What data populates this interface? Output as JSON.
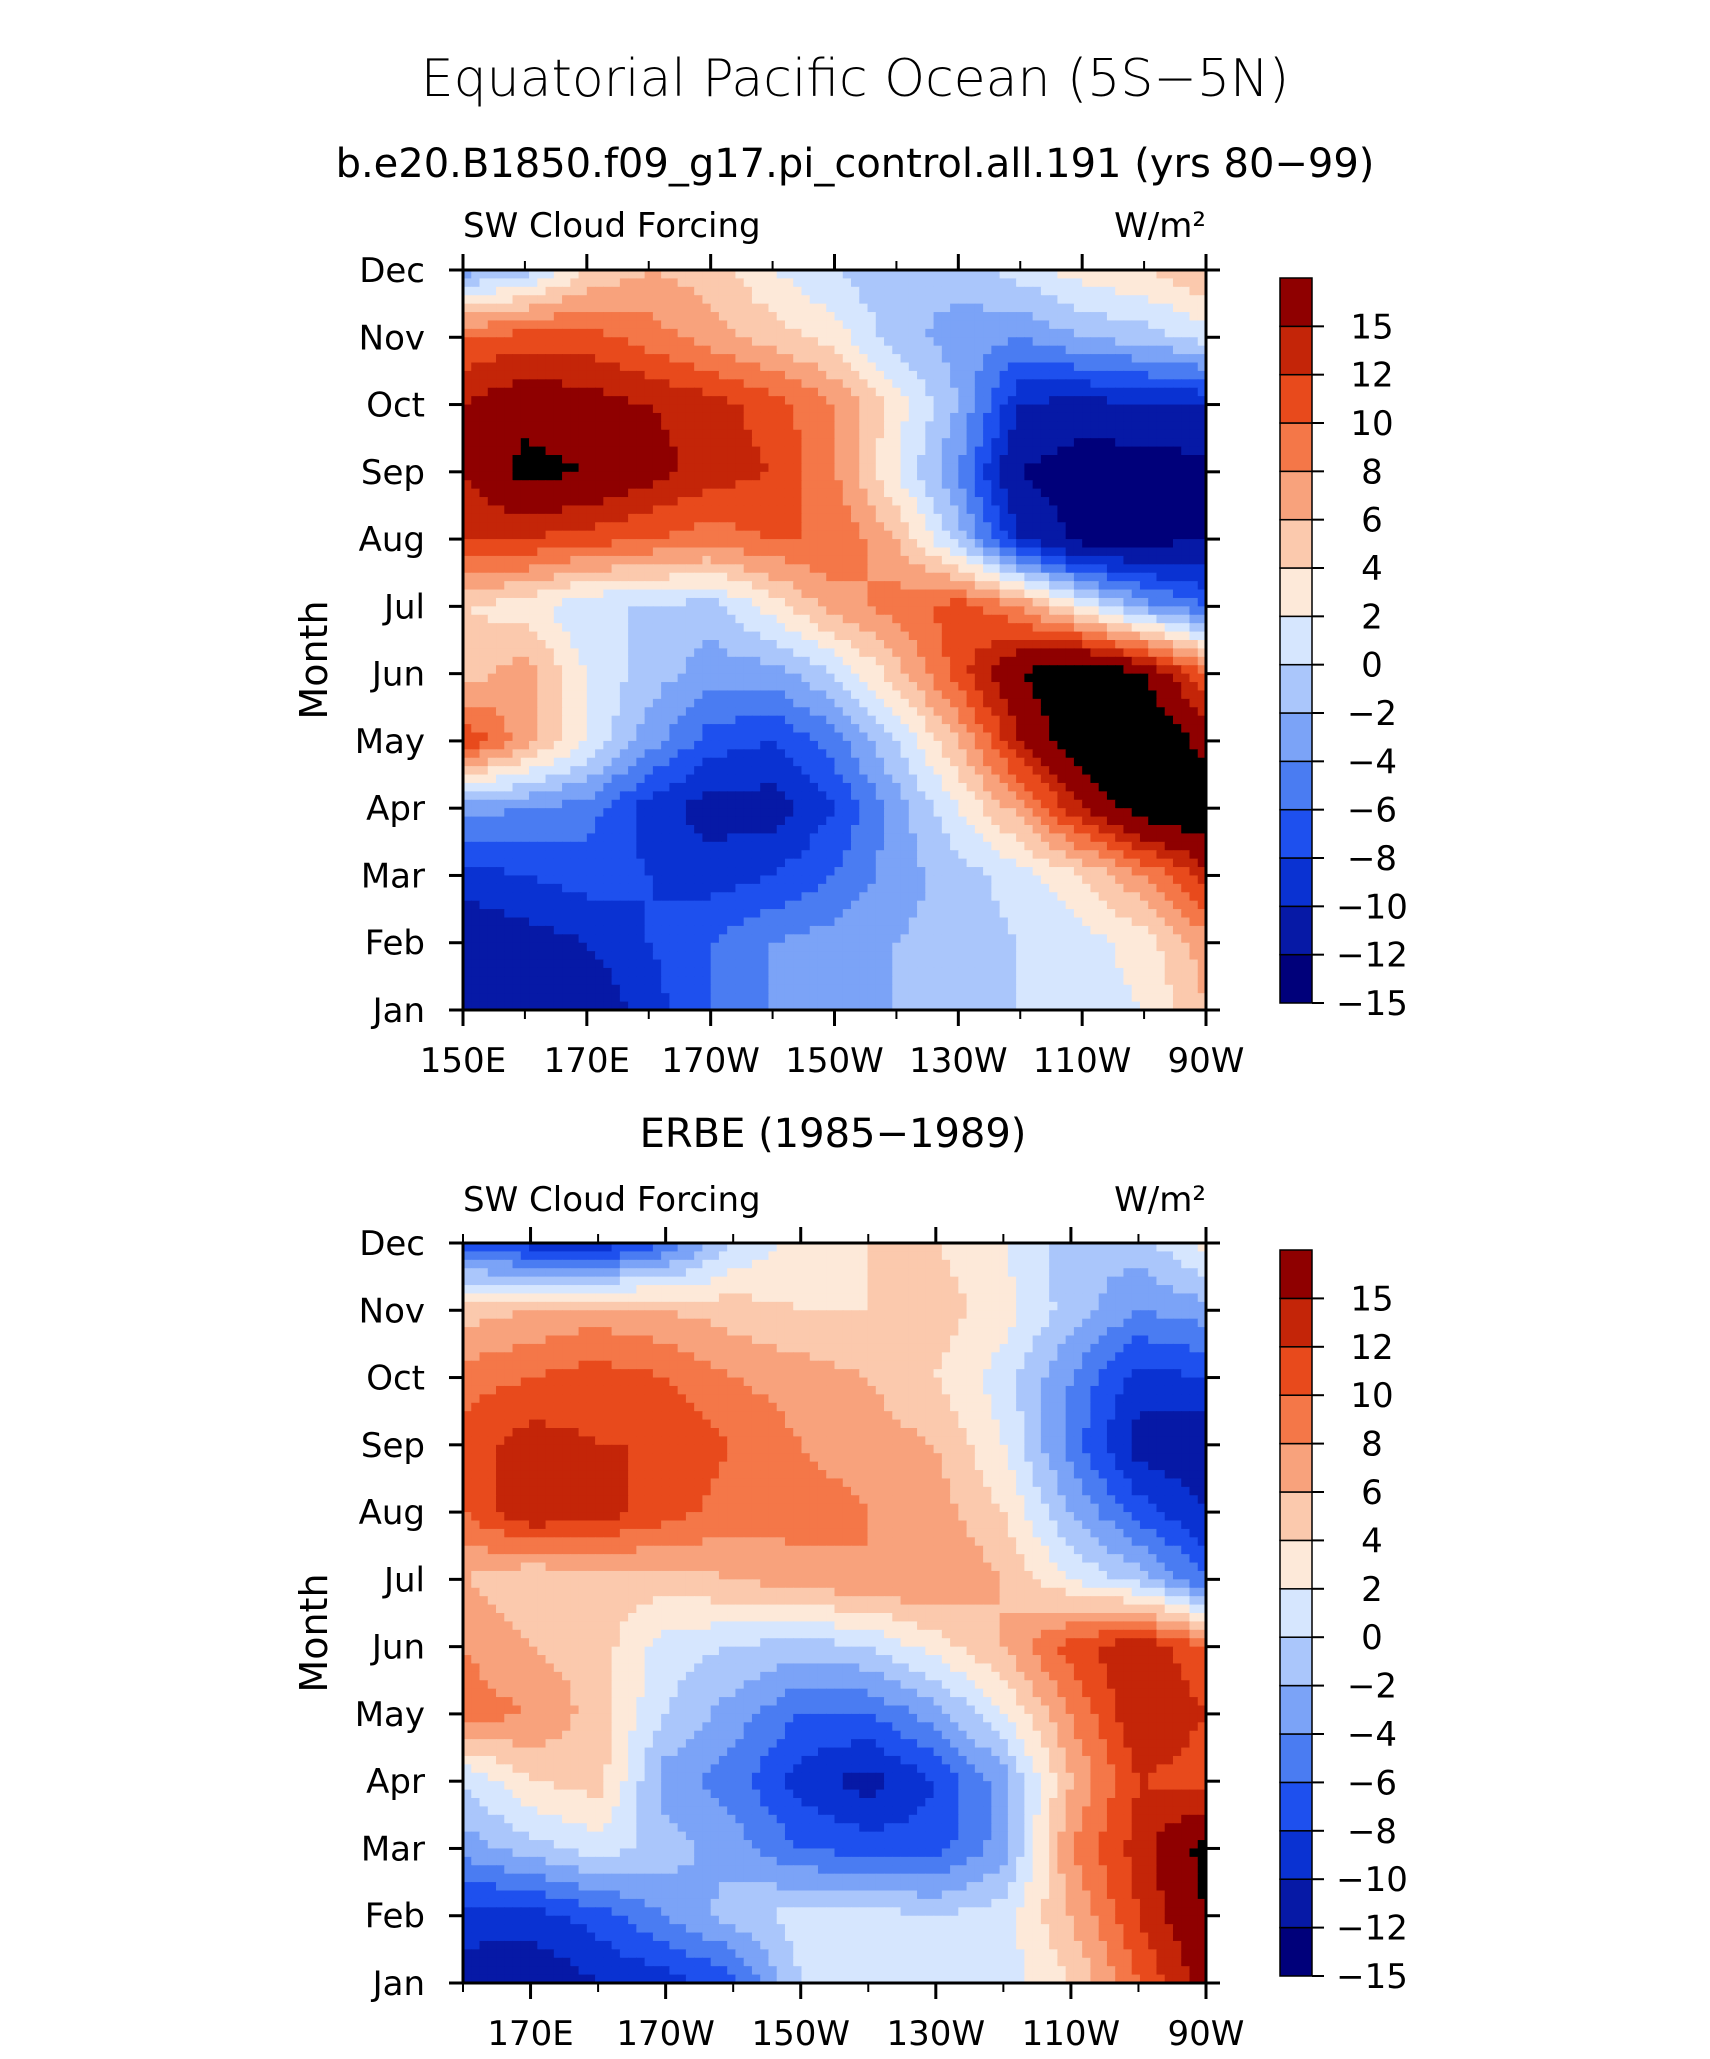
{
  "figure": {
    "title": "Equatorial Pacific Ocean (5S−5N)",
    "subtitle": "b.e20.B1850.f09_g17.pi_control.all.191 (yrs 80−99)"
  },
  "colorbar": {
    "levels": [
      -15,
      -12,
      -10,
      -8,
      -6,
      -4,
      -2,
      0,
      2,
      4,
      6,
      8,
      10,
      12,
      15
    ],
    "level_labels": [
      "15",
      "12",
      "10",
      "8",
      "6",
      "4",
      "2",
      "0",
      "−2",
      "−4",
      "−6",
      "−8",
      "−10",
      "−12",
      "−15"
    ],
    "colors": [
      "#00007a",
      "#0619a6",
      "#0a32d2",
      "#1e50ee",
      "#4a7cf2",
      "#7ba3f7",
      "#aac6fb",
      "#d6e6fe",
      "#fde9d9",
      "#fbc9ad",
      "#f8a27c",
      "#f47748",
      "#e84a1c",
      "#c42508",
      "#8f0000"
    ]
  },
  "chart_data": [
    {
      "type": "heatmap",
      "title": "b.e20.B1850.f09_g17.pi_control.all.191 (yrs 80−99)",
      "left_label": "SW Cloud Forcing",
      "units": "W/m²",
      "ylabel": "Month",
      "xlabel": "",
      "x_ticks": [
        "150E",
        "170E",
        "170W",
        "150W",
        "130W",
        "110W",
        "90W"
      ],
      "x_tick_lons": [
        150,
        170,
        190,
        210,
        230,
        250,
        270
      ],
      "y_ticks": [
        "Jan",
        "Feb",
        "Mar",
        "Apr",
        "May",
        "Jun",
        "Jul",
        "Aug",
        "Sep",
        "Oct",
        "Nov",
        "Dec"
      ],
      "xlim": [
        150,
        270
      ],
      "x": [
        150,
        160,
        170,
        180,
        190,
        200,
        210,
        220,
        230,
        240,
        250,
        260,
        270
      ],
      "z": [
        [
          -15,
          -15,
          -14,
          -11,
          -8,
          -6,
          -5,
          -4,
          -3,
          -2,
          -1,
          0,
          4
        ],
        [
          -14,
          -13,
          -12,
          -10,
          -8,
          -6,
          -5,
          -4,
          -3,
          -2,
          -1,
          1,
          5
        ],
        [
          -11,
          -10,
          -9,
          -10,
          -11,
          -10,
          -8,
          -5,
          -3,
          -1,
          2,
          6,
          11
        ],
        [
          -5,
          -6,
          -7,
          -11,
          -13,
          -13,
          -10,
          -5,
          0,
          5,
          12,
          17,
          18
        ],
        [
          10,
          5,
          0,
          -5,
          -9,
          -10,
          -7,
          -2,
          4,
          12,
          18,
          18,
          14
        ],
        [
          3,
          5,
          0,
          -3,
          -5,
          -5,
          -2,
          3,
          9,
          15,
          18,
          15,
          8
        ],
        [
          2,
          1,
          -2,
          -2,
          -3,
          1,
          5,
          7,
          9,
          6,
          0,
          -5,
          -8
        ],
        [
          10,
          10,
          9,
          8,
          7,
          8,
          8,
          4,
          -3,
          -12,
          -16,
          -16,
          -15
        ],
        [
          12,
          16,
          15,
          13,
          11,
          10,
          6,
          0,
          -6,
          -15,
          -17,
          -17,
          -16
        ],
        [
          12,
          14,
          13,
          12,
          11,
          9,
          6,
          1,
          -4,
          -12,
          -13,
          -12,
          -12
        ],
        [
          8,
          9,
          9,
          7,
          5,
          3,
          1,
          -3,
          -5,
          -6,
          -4,
          -3,
          -1
        ],
        [
          -5,
          -3,
          2,
          4,
          3,
          0,
          -2,
          -4,
          -3,
          -1,
          1,
          2,
          4
        ]
      ]
    },
    {
      "type": "heatmap",
      "title": "ERBE (1985−1989)",
      "left_label": "SW Cloud Forcing",
      "units": "W/m²",
      "ylabel": "Month",
      "xlabel": "",
      "x_ticks": [
        "170E",
        "170W",
        "150W",
        "130W",
        "110W",
        "90W"
      ],
      "x_tick_lons": [
        170,
        190,
        210,
        230,
        250,
        270
      ],
      "y_ticks": [
        "Jan",
        "Feb",
        "Mar",
        "Apr",
        "May",
        "Jun",
        "Jul",
        "Aug",
        "Sep",
        "Oct",
        "Nov",
        "Dec"
      ],
      "xlim": [
        160,
        270
      ],
      "x": [
        160,
        170,
        180,
        190,
        200,
        210,
        220,
        230,
        240,
        250,
        260,
        270
      ],
      "z": [
        [
          -13,
          -14,
          -12,
          -11,
          -9,
          -2,
          0,
          -1,
          -1,
          2,
          8,
          13
        ],
        [
          -11,
          -11,
          -9,
          -6,
          -3,
          -1,
          -1,
          -2,
          -1,
          4,
          10,
          15
        ],
        [
          -5,
          -3,
          -1,
          -3,
          -5,
          -8,
          -9,
          -9,
          -5,
          6,
          11,
          16
        ],
        [
          -2,
          2,
          3,
          -5,
          -7,
          -11,
          -13,
          -10,
          -5,
          4,
          10,
          9
        ],
        [
          7,
          6,
          3,
          -2,
          -5,
          -8,
          -8,
          -5,
          0,
          6,
          12,
          10
        ],
        [
          6,
          4,
          3,
          -1,
          -2,
          -3,
          -2,
          1,
          4,
          9,
          12,
          8
        ],
        [
          4,
          2,
          3,
          3,
          4,
          5,
          6,
          6,
          4,
          0,
          -3,
          -8
        ],
        [
          8,
          12,
          11,
          9,
          7,
          7,
          6,
          5,
          2,
          -4,
          -9,
          -12
        ],
        [
          9,
          11,
          10,
          10,
          8,
          6,
          5,
          4,
          0,
          -7,
          -13,
          -14
        ],
        [
          7,
          8,
          9,
          8,
          6,
          5,
          4,
          2,
          -1,
          -6,
          -11,
          -10
        ],
        [
          3,
          4,
          5,
          4,
          3,
          2,
          2,
          3,
          1,
          -3,
          -6,
          -5
        ],
        [
          -9,
          -11,
          -12,
          -8,
          -2,
          1,
          2,
          2,
          0,
          -3,
          -3,
          1
        ]
      ]
    }
  ]
}
